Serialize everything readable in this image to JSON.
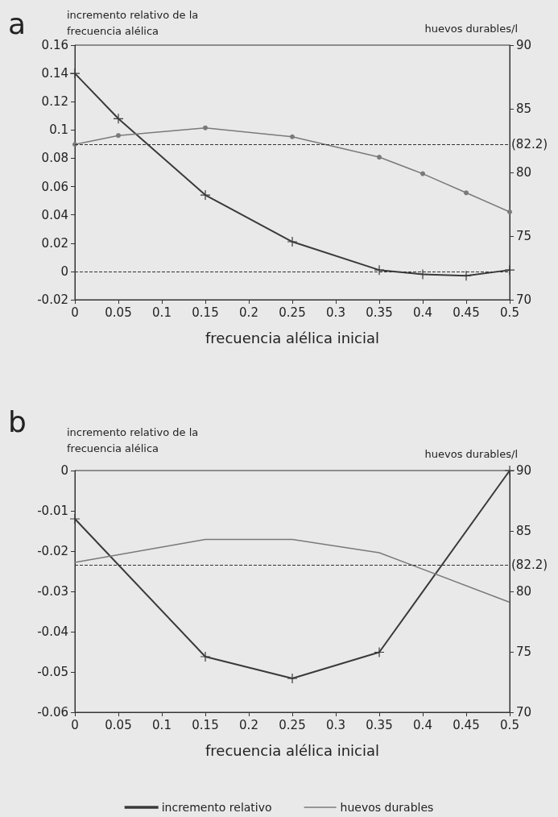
{
  "chart_data": [
    {
      "type": "line",
      "title": "a",
      "xlabel": "frecuencia alélica inicial",
      "ylabel": "incremento relativo de la frecuencia alélica",
      "y2label": "huevos durables/l",
      "x": [
        0,
        0.05,
        0.15,
        0.25,
        0.35,
        0.4,
        0.45,
        0.5
      ],
      "series": [
        {
          "color": "#3a3a3a",
          "marker": "cross",
          "values": [
            0.14,
            0.108,
            0.054,
            0.021,
            0.001,
            -0.002,
            -0.003,
            0.001
          ]
        },
        {
          "color": "#7a7a7a",
          "marker": "circle",
          "axis": "y2",
          "values": [
            82.2,
            82.9,
            83.5,
            82.8,
            81.2,
            79.9,
            78.4,
            76.9
          ]
        }
      ],
      "xlim": [
        0,
        0.5
      ],
      "xticks": [
        0,
        0.05,
        0.1,
        0.15,
        0.2,
        0.25,
        0.3,
        0.35,
        0.4,
        0.45,
        0.5
      ],
      "ylim": [
        -0.02,
        0.16
      ],
      "yticks": [
        -0.02,
        0,
        0.02,
        0.04,
        0.06,
        0.08,
        0.1,
        0.12,
        0.14,
        0.16
      ],
      "y2lim": [
        70,
        90
      ],
      "y2ticks": [
        70,
        75,
        80,
        85,
        90
      ],
      "ref_lines": [
        {
          "axis": "y",
          "value": 0,
          "line_style": "dashed"
        },
        {
          "axis": "y2",
          "value": 82.2,
          "label": "(82.2)",
          "line_style": "dashed"
        }
      ],
      "grid": false,
      "legend": false
    },
    {
      "type": "line",
      "title": "b",
      "xlabel": "frecuencia alélica inicial",
      "ylabel": "incremento relativo de la frecuencia alélica",
      "y2label": "huevos durables/l",
      "x": [
        0,
        0.15,
        0.25,
        0.35,
        0.5
      ],
      "series": [
        {
          "name": "incremento relativo",
          "color": "#3a3a3a",
          "marker": "cross",
          "values": [
            -0.012,
            -0.0462,
            -0.0516,
            -0.0451,
            0
          ]
        },
        {
          "name": "huevos durables",
          "color": "#7a7a7a",
          "marker": "none",
          "axis": "y2",
          "values": [
            82.4,
            84.3,
            84.3,
            83.2,
            79.1
          ]
        }
      ],
      "xlim": [
        0,
        0.5
      ],
      "xticks": [
        0,
        0.05,
        0.1,
        0.15,
        0.2,
        0.25,
        0.3,
        0.35,
        0.4,
        0.45,
        0.5
      ],
      "ylim": [
        -0.06,
        0
      ],
      "yticks": [
        -0.06,
        -0.05,
        -0.04,
        -0.03,
        -0.02,
        -0.01,
        0
      ],
      "y2lim": [
        70,
        90
      ],
      "y2ticks": [
        70,
        75,
        80,
        85,
        90
      ],
      "ref_lines": [
        {
          "axis": "y2",
          "value": 82.2,
          "label": "(82.2)",
          "line_style": "dashed"
        }
      ],
      "grid": false,
      "legend": "bottom"
    }
  ]
}
